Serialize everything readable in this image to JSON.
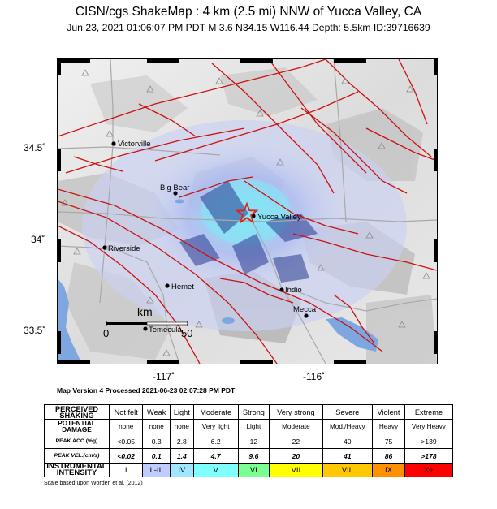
{
  "header": {
    "title": "CISN/cgs ShakeMap : 4 km (2.5 mi) NNW of Yucca Valley, CA",
    "subtitle": "Jun 23, 2021 01:06:07 PM PDT    M 3.6    N34.15 W116.44    Depth: 5.5km    ID:39716639"
  },
  "map": {
    "cities": [
      {
        "name": "Victorville"
      },
      {
        "name": "Big Bear"
      },
      {
        "name": "Yucca Valley"
      },
      {
        "name": "Riverside"
      },
      {
        "name": "Hemet"
      },
      {
        "name": "Indio"
      },
      {
        "name": "Mecca"
      },
      {
        "name": "Temecula"
      }
    ],
    "lat_labels": [
      "34.5˚",
      "34˚",
      "33.5˚"
    ],
    "lon_labels": [
      "-117˚",
      "-116˚"
    ],
    "scale_bar": {
      "unit": "km",
      "start": "0",
      "end": "50"
    },
    "epicenter_icon": "star-icon",
    "colors": {
      "fault": "#cc1111",
      "water": "#7ea7e0",
      "shaking_light": "#a8b8f2",
      "shaking_weak": "#c9d1f5",
      "epicenter": "#e0221a"
    }
  },
  "version_note": "Map Version 4 Processed 2021-06-23 02:07:28 PM PDT",
  "legend": {
    "rows": [
      {
        "label": "PERCEIVED SHAKING",
        "cells": [
          "Not felt",
          "Weak",
          "Light",
          "Moderate",
          "Strong",
          "Very strong",
          "Severe",
          "Violent",
          "Extreme"
        ]
      },
      {
        "label": "POTENTIAL DAMAGE",
        "cells": [
          "none",
          "none",
          "none",
          "Very light",
          "Light",
          "Moderate",
          "Mod./Heavy",
          "Heavy",
          "Very Heavy"
        ]
      },
      {
        "label": "PEAK ACC.(%g)",
        "cells": [
          "<0.05",
          "0.3",
          "2.8",
          "6.2",
          "12",
          "22",
          "40",
          "75",
          ">139"
        ]
      },
      {
        "label": "PEAK VEL.(cm/s)",
        "cells": [
          "<0.02",
          "0.1",
          "1.4",
          "4.7",
          "9.6",
          "20",
          "41",
          "86",
          ">178"
        ]
      },
      {
        "label": "INSTRUMENTAL INTENSITY",
        "cells": [
          "I",
          "II-III",
          "IV",
          "V",
          "VI",
          "VII",
          "VIII",
          "IX",
          "X+"
        ]
      }
    ],
    "intensity_colors": [
      "#ffffff",
      "#bfccff",
      "#a0e6ff",
      "#80ffff",
      "#7aff93",
      "#ffff00",
      "#ffc800",
      "#ff9100",
      "#ff0000"
    ],
    "scale_note": "Scale based upon Worden et al. (2012)"
  }
}
